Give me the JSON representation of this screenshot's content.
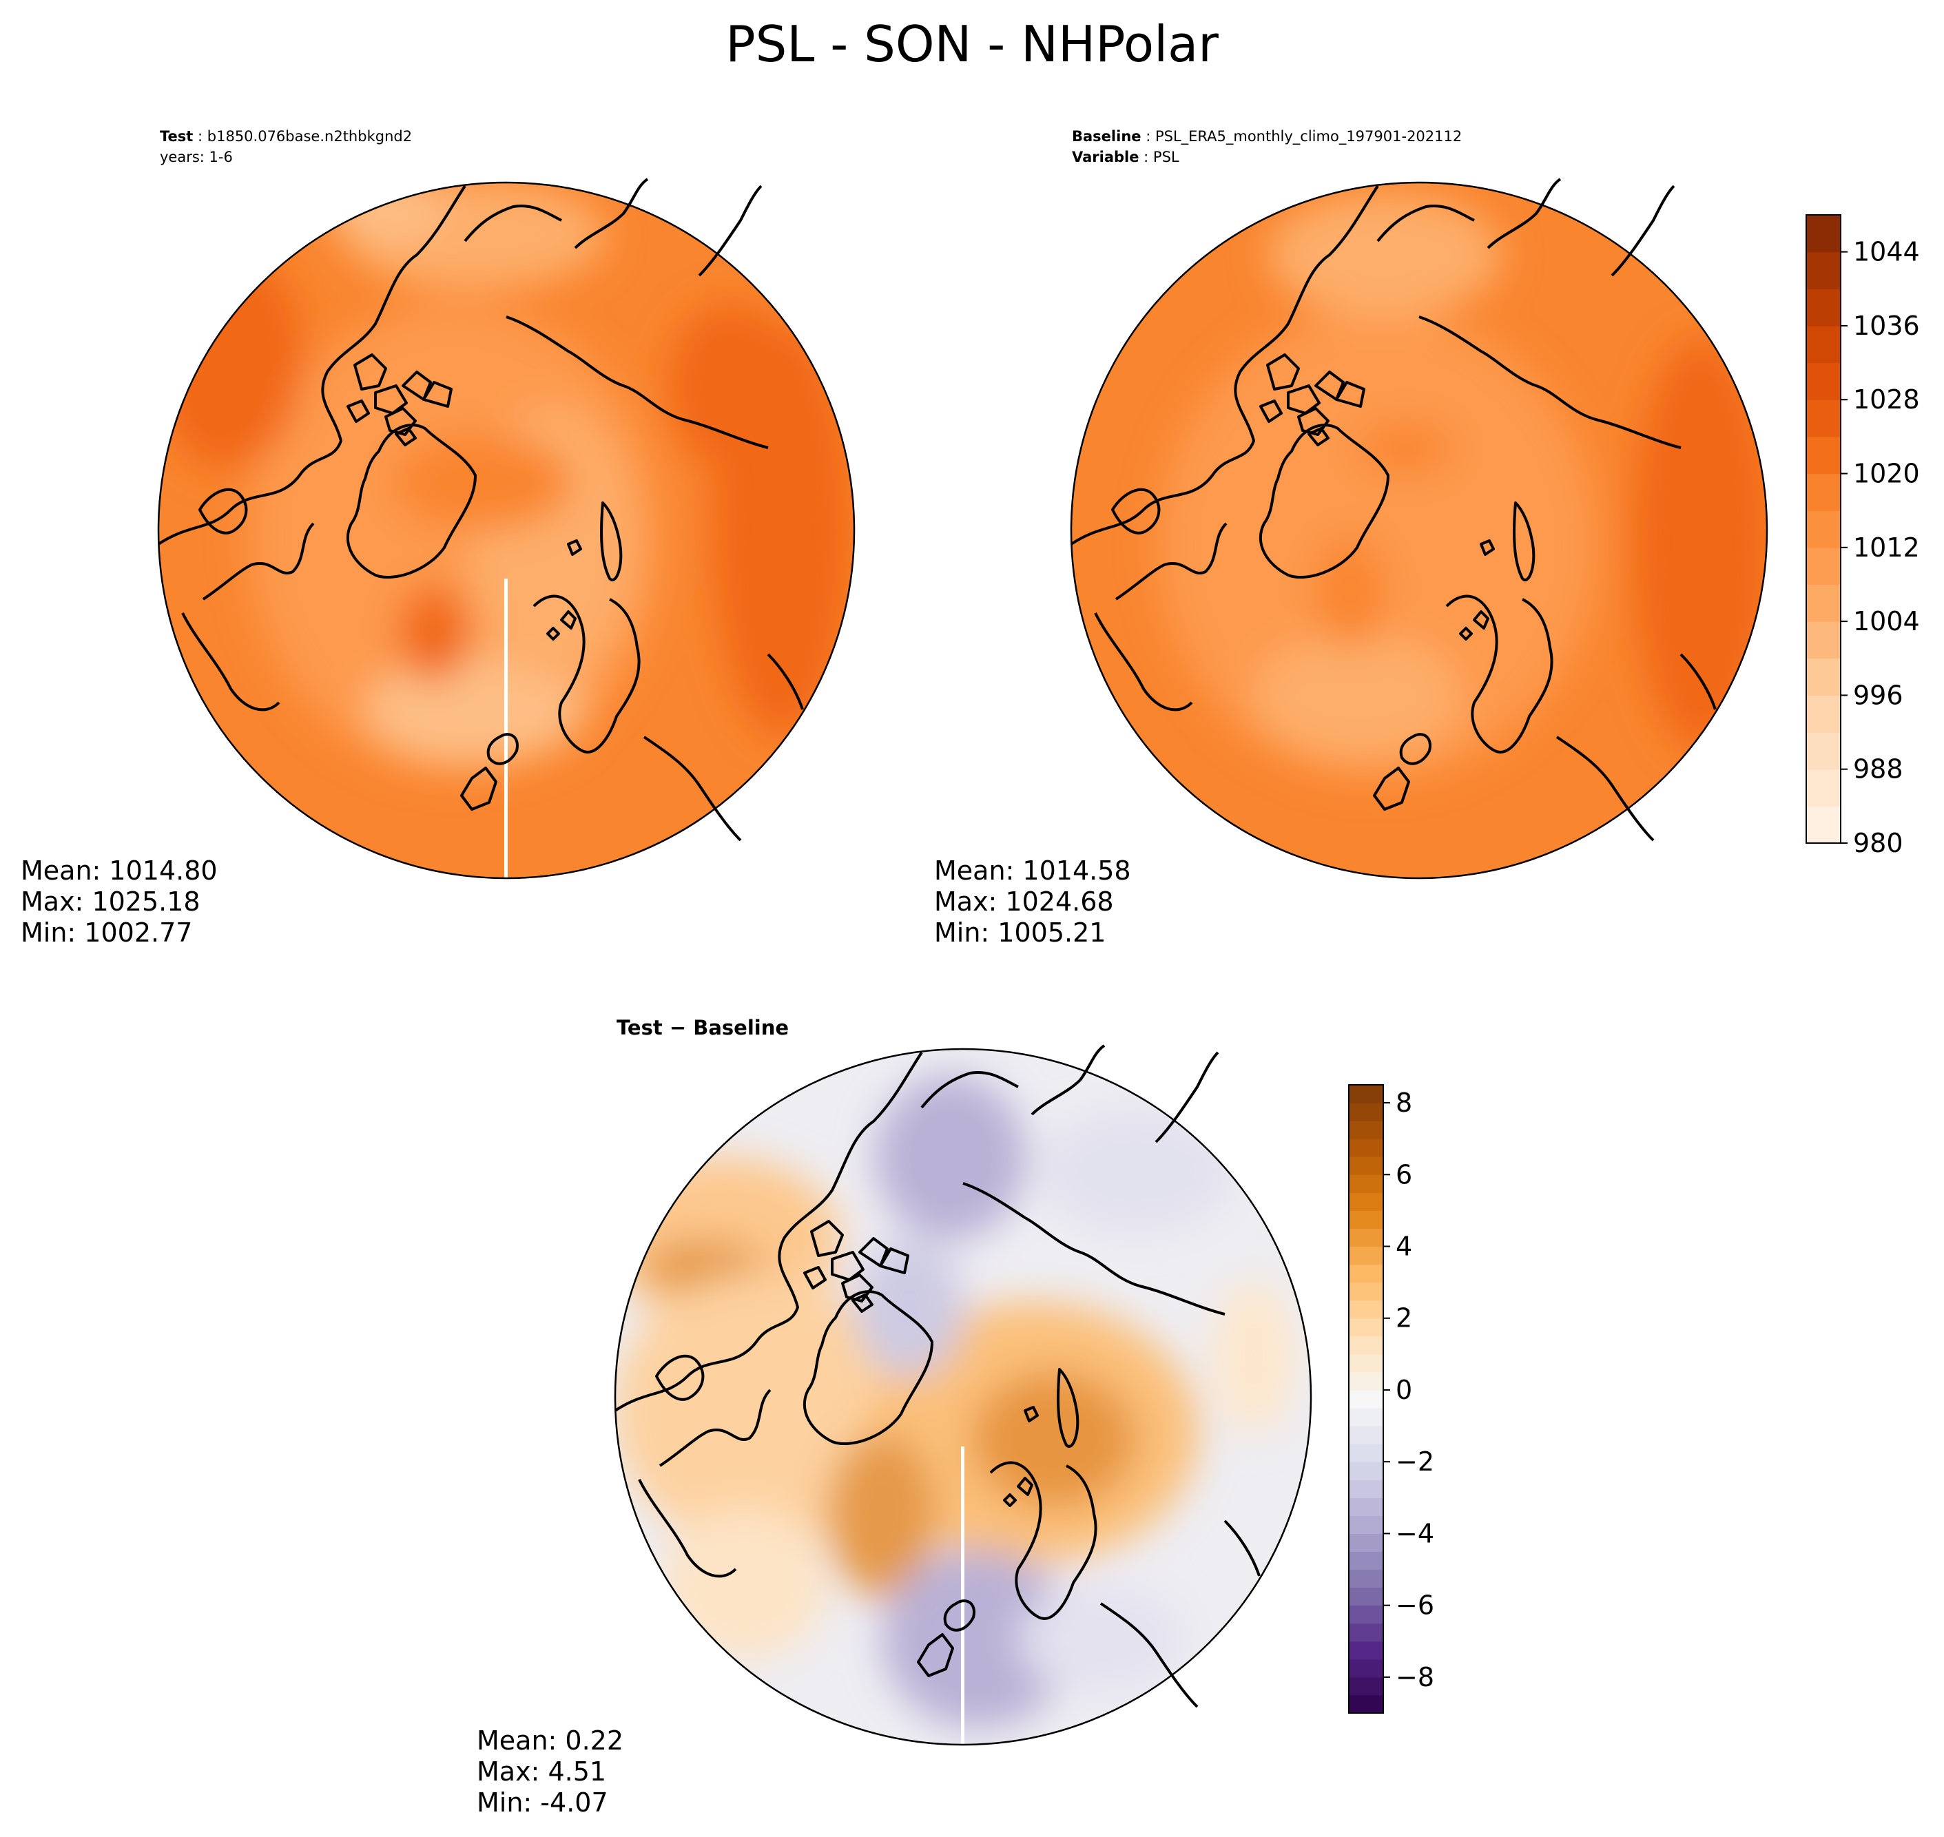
{
  "figure": {
    "title": "PSL - SON - NHPolar"
  },
  "panels": {
    "test": {
      "label_bold": "Test",
      "label_value": "b1850.076base.n2thbkgnd2",
      "years_line": "years: 1-6",
      "stats": {
        "mean": "Mean: 1014.80",
        "max": "Max: 1025.18",
        "min": "Min: 1002.77"
      }
    },
    "baseline": {
      "label_bold": "Baseline",
      "label_value": "PSL_ERA5_monthly_climo_197901-202112",
      "variable_bold": "Variable",
      "variable_value": "PSL",
      "stats": {
        "mean": "Mean: 1014.58",
        "max": "Max: 1024.68",
        "min": "Min: 1005.21"
      }
    },
    "difference": {
      "title": "Test − Baseline",
      "stats": {
        "mean": "Mean:  0.22",
        "max": "Max:  4.51",
        "min": "Min: -4.07"
      }
    }
  },
  "chart_data": [
    {
      "type": "heatmap",
      "panel": "test",
      "projection": "north-polar-stereographic",
      "variable": "PSL",
      "levels": [
        980,
        984,
        988,
        992,
        996,
        1000,
        1004,
        1008,
        1012,
        1016,
        1020,
        1024,
        1028,
        1032,
        1036,
        1040,
        1044,
        1048
      ],
      "mean": 1014.8,
      "max": 1025.18,
      "min": 1002.77,
      "colormap": "Oranges"
    },
    {
      "type": "heatmap",
      "panel": "baseline",
      "projection": "north-polar-stereographic",
      "variable": "PSL",
      "levels": [
        980,
        984,
        988,
        992,
        996,
        1000,
        1004,
        1008,
        1012,
        1016,
        1020,
        1024,
        1028,
        1032,
        1036,
        1040,
        1044,
        1048
      ],
      "mean": 1014.58,
      "max": 1024.68,
      "min": 1005.21,
      "colormap": "Oranges",
      "colorbar": {
        "ticks": [
          980,
          988,
          996,
          1004,
          1012,
          1020,
          1028,
          1036,
          1044
        ],
        "tick_labels": [
          "980",
          "988",
          "996",
          "1004",
          "1012",
          "1020",
          "1028",
          "1036",
          "1044"
        ],
        "range": [
          980,
          1048
        ]
      }
    },
    {
      "type": "heatmap",
      "panel": "difference",
      "projection": "north-polar-stereographic",
      "mean": 0.22,
      "max": 4.51,
      "min": -4.07,
      "colormap": "PuOr_r",
      "colorbar": {
        "ticks": [
          -8,
          -6,
          -4,
          -2,
          0,
          2,
          4,
          6,
          8
        ],
        "tick_labels": [
          "−8",
          "−6",
          "−4",
          "−2",
          "0",
          "2",
          "4",
          "6",
          "8"
        ],
        "range": [
          -9,
          8.5
        ]
      }
    }
  ],
  "colors": {
    "oranges": [
      "#fff5eb",
      "#fee6ce",
      "#fdd9b4",
      "#fdc794",
      "#fdae6b",
      "#fd9a4e",
      "#f9852f",
      "#f16813",
      "#e2540a",
      "#cb4302",
      "#a63603",
      "#7f2704"
    ],
    "puor": [
      "#2d004b",
      "#542788",
      "#8073ac",
      "#b2abd2",
      "#d8daeb",
      "#f7f7f7",
      "#fee0b6",
      "#fdb863",
      "#e08214",
      "#b35806",
      "#7f3b08"
    ]
  }
}
